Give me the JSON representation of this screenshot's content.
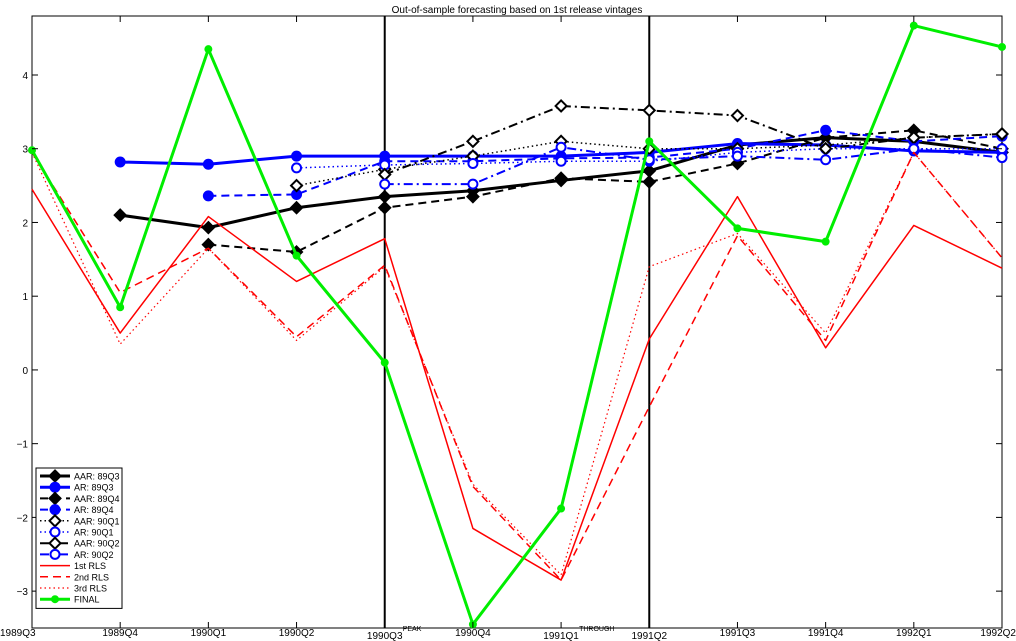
{
  "chart_data": {
    "type": "line",
    "title": "Out-of-sample forecasting based on 1st release vintages",
    "xlabel": "",
    "ylabel": "",
    "categories": [
      "1989Q3",
      "1989Q4",
      "1990Q1",
      "1990Q2",
      "1990Q3",
      "1990Q4",
      "1991Q1",
      "1991Q2",
      "1991Q3",
      "1991Q4",
      "1992Q1",
      "1992Q2"
    ],
    "ylim": [
      -3.5,
      4.8
    ],
    "yticks": [
      -3,
      -2,
      -1,
      0,
      1,
      2,
      3,
      4
    ],
    "grid": false,
    "legend_position": "bottom-left",
    "vlines": [
      {
        "x": "1990Q3",
        "label": "PEAK"
      },
      {
        "x": "1991Q2",
        "label": ""
      }
    ],
    "annotations": [
      {
        "x": "1991Q1",
        "text": "THROUGH"
      }
    ],
    "series": [
      {
        "name": "AAR: 89Q3",
        "color": "#000000",
        "dash": "solid",
        "width": 3,
        "marker": "diamond-filled",
        "x": [
          "1989Q4",
          "1990Q1",
          "1990Q2",
          "1990Q3",
          "1990Q4",
          "1991Q1",
          "1991Q2",
          "1991Q3",
          "1991Q4",
          "1992Q1",
          "1992Q2"
        ],
        "values": [
          2.1,
          1.93,
          2.2,
          2.35,
          2.43,
          2.57,
          2.7,
          3.05,
          3.15,
          3.1,
          2.95
        ]
      },
      {
        "name": "AR: 89Q3",
        "color": "#0000ff",
        "dash": "solid",
        "width": 3,
        "marker": "circle-filled",
        "x": [
          "1989Q4",
          "1990Q1",
          "1990Q2",
          "1990Q3",
          "1990Q4",
          "1991Q1",
          "1991Q2",
          "1991Q3",
          "1991Q4",
          "1992Q1",
          "1992Q2"
        ],
        "values": [
          2.82,
          2.79,
          2.9,
          2.9,
          2.9,
          2.9,
          2.95,
          3.07,
          3.05,
          2.97,
          2.95
        ]
      },
      {
        "name": "AAR: 89Q4",
        "color": "#000000",
        "dash": "dashed",
        "width": 2,
        "marker": "diamond-filled",
        "x": [
          "1990Q1",
          "1990Q2",
          "1990Q3",
          "1990Q4",
          "1991Q1",
          "1991Q2",
          "1991Q3",
          "1991Q4",
          "1992Q1",
          "1992Q2"
        ],
        "values": [
          1.7,
          1.6,
          2.2,
          2.35,
          2.6,
          2.55,
          2.8,
          3.15,
          3.25,
          3.0
        ]
      },
      {
        "name": "AR: 89Q4",
        "color": "#0000ff",
        "dash": "dashed",
        "width": 2,
        "marker": "circle-filled",
        "x": [
          "1990Q1",
          "1990Q2",
          "1990Q3",
          "1990Q4",
          "1991Q1",
          "1991Q2",
          "1991Q3",
          "1991Q4",
          "1992Q1",
          "1992Q2"
        ],
        "values": [
          2.36,
          2.38,
          2.83,
          2.83,
          2.87,
          2.88,
          3.0,
          3.25,
          3.1,
          3.17
        ]
      },
      {
        "name": "AAR: 90Q1",
        "color": "#000000",
        "dash": "dotted",
        "width": 1.5,
        "marker": "diamond-open",
        "x": [
          "1990Q2",
          "1990Q3",
          "1990Q4",
          "1991Q1",
          "1991Q2",
          "1991Q3",
          "1991Q4",
          "1992Q1",
          "1992Q2"
        ],
        "values": [
          2.5,
          2.72,
          2.9,
          3.1,
          3.0,
          3.0,
          3.05,
          3.15,
          3.2
        ]
      },
      {
        "name": "AR: 90Q1",
        "color": "#0000ff",
        "dash": "dotted",
        "width": 1.5,
        "marker": "circle-open",
        "x": [
          "1990Q2",
          "1990Q3",
          "1990Q4",
          "1991Q1",
          "1991Q2",
          "1991Q3",
          "1991Q4",
          "1992Q1",
          "1992Q2"
        ],
        "values": [
          2.74,
          2.78,
          2.8,
          2.83,
          2.83,
          2.95,
          3.0,
          3.0,
          3.0
        ]
      },
      {
        "name": "AAR: 90Q2",
        "color": "#000000",
        "dash": "dashdot",
        "width": 2,
        "marker": "diamond-open",
        "x": [
          "1990Q3",
          "1990Q4",
          "1991Q1",
          "1991Q2",
          "1991Q3",
          "1991Q4",
          "1992Q1",
          "1992Q2"
        ],
        "values": [
          2.65,
          3.1,
          3.58,
          3.52,
          3.45,
          3.0,
          3.15,
          3.2
        ]
      },
      {
        "name": "AR: 90Q2",
        "color": "#0000ff",
        "dash": "dashdot",
        "width": 2,
        "marker": "circle-open",
        "x": [
          "1990Q3",
          "1990Q4",
          "1991Q1",
          "1991Q2",
          "1991Q3",
          "1991Q4",
          "1992Q1",
          "1992Q2"
        ],
        "values": [
          2.52,
          2.52,
          3.02,
          2.85,
          2.9,
          2.85,
          3.0,
          2.88
        ]
      },
      {
        "name": "1st RLS",
        "color": "#ff0000",
        "dash": "solid",
        "width": 1.5,
        "marker": "none",
        "x": [
          "1989Q3",
          "1989Q4",
          "1990Q1",
          "1990Q2",
          "1990Q3",
          "1990Q4",
          "1991Q1",
          "1991Q2",
          "1991Q3",
          "1991Q4",
          "1992Q1",
          "1992Q2"
        ],
        "values": [
          2.45,
          0.5,
          2.08,
          1.2,
          1.78,
          -2.15,
          -2.85,
          0.42,
          2.35,
          0.3,
          1.96,
          1.38
        ]
      },
      {
        "name": "2nd RLS",
        "color": "#ff0000",
        "dash": "dashed",
        "width": 1.5,
        "marker": "none",
        "x": [
          "1989Q3",
          "1989Q4",
          "1990Q1",
          "1990Q2",
          "1990Q3",
          "1990Q4",
          "1991Q1",
          "1991Q2",
          "1991Q3",
          "1991Q4",
          "1992Q1",
          "1992Q2"
        ],
        "values": [
          2.95,
          1.05,
          1.65,
          0.45,
          1.42,
          -1.58,
          -2.85,
          -0.5,
          1.82,
          0.4,
          2.95,
          1.52
        ]
      },
      {
        "name": "3rd RLS",
        "color": "#ff0000",
        "dash": "dotted",
        "width": 1.2,
        "marker": "none",
        "x": [
          "1989Q3",
          "1989Q4",
          "1990Q1",
          "1990Q2",
          "1990Q3",
          "1990Q4",
          "1991Q1",
          "1991Q2",
          "1991Q3",
          "1991Q4",
          "1992Q1",
          "1992Q2"
        ],
        "values": [
          2.95,
          0.35,
          1.65,
          0.4,
          1.4,
          -1.55,
          -2.78,
          1.4,
          1.85,
          0.5,
          2.95,
          1.52
        ]
      },
      {
        "name": "FINAL",
        "color": "#00ee00",
        "dash": "solid",
        "width": 3,
        "marker": "dot-filled",
        "x": [
          "1989Q3",
          "1989Q4",
          "1990Q1",
          "1990Q2",
          "1990Q3",
          "1990Q4",
          "1991Q1",
          "1991Q2",
          "1991Q3",
          "1991Q4",
          "1992Q1",
          "1992Q2"
        ],
        "values": [
          2.98,
          0.85,
          4.35,
          1.55,
          0.1,
          -3.45,
          -1.88,
          3.1,
          1.92,
          1.74,
          4.67,
          4.38
        ]
      }
    ]
  }
}
